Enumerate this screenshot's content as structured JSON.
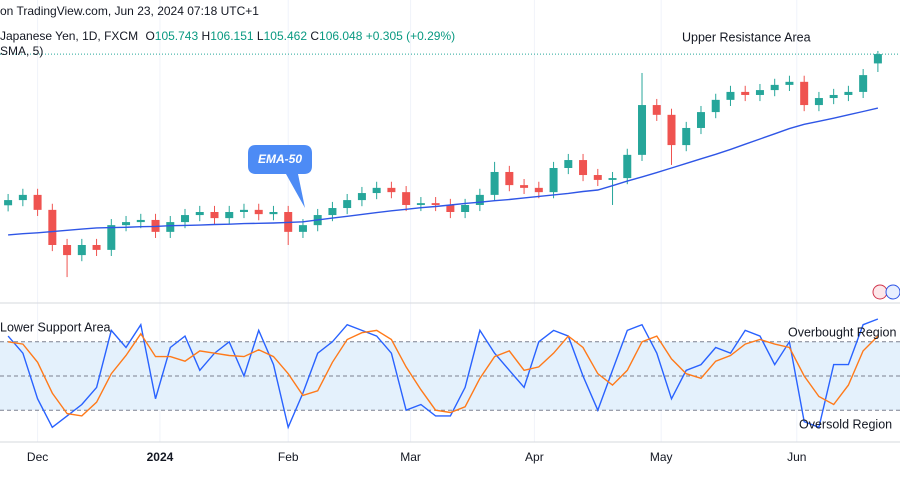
{
  "header": {
    "source": "on TradingView.com, Jun 23, 2024 07:18 UTC+1",
    "symbol": "Japanese Yen, 1D, FXCM",
    "ohlc_prefixes": [
      "O",
      "H",
      "L",
      "C"
    ],
    "change": "+0.305 (+0.29%)",
    "indicator": "SMA, 5)"
  },
  "chart_data": [
    {
      "type": "candlestick",
      "up_color": "#26a69a",
      "down_color": "#ef5350",
      "xlim": [
        -0.55,
        60.5
      ],
      "ylim": [
        98,
        107
      ],
      "open": [
        101.1,
        101.27,
        101.44,
        100.95,
        99.8,
        99.47,
        99.8,
        99.64,
        100.45,
        100.55,
        100.62,
        100.23,
        100.55,
        100.78,
        100.88,
        100.68,
        100.88,
        100.95,
        100.81,
        100.88,
        100.23,
        100.45,
        100.78,
        101.01,
        101.27,
        101.5,
        101.67,
        101.53,
        101.11,
        101.17,
        101.11,
        100.88,
        101.11,
        101.44,
        102.19,
        101.76,
        101.67,
        101.53,
        102.32,
        102.58,
        102.09,
        101.93,
        101.99,
        102.75,
        104.38,
        104.06,
        103.07,
        103.63,
        104.15,
        104.55,
        104.81,
        104.71,
        104.87,
        105.04,
        105.14,
        104.38,
        104.61,
        104.71,
        104.81,
        105.743
      ],
      "high": [
        101.47,
        101.64,
        101.64,
        101.15,
        100.0,
        100.0,
        100.0,
        100.65,
        100.75,
        100.82,
        100.82,
        100.75,
        100.98,
        101.08,
        101.08,
        101.08,
        101.15,
        101.15,
        101.08,
        101.08,
        100.65,
        100.98,
        101.21,
        101.47,
        101.7,
        101.87,
        101.87,
        101.73,
        101.37,
        101.37,
        101.31,
        101.31,
        101.64,
        102.52,
        102.39,
        101.96,
        101.87,
        102.52,
        102.78,
        102.78,
        102.29,
        102.19,
        102.95,
        105.43,
        104.58,
        104.26,
        103.83,
        104.35,
        104.75,
        105.01,
        105.01,
        105.07,
        105.24,
        105.34,
        105.34,
        104.81,
        104.91,
        105.01,
        105.56,
        106.151
      ],
      "low": [
        100.9,
        101.07,
        100.75,
        99.6,
        98.75,
        99.27,
        99.44,
        99.44,
        100.25,
        100.35,
        100.03,
        100.03,
        100.35,
        100.58,
        100.48,
        100.48,
        100.68,
        100.61,
        100.61,
        99.8,
        100.03,
        100.25,
        100.58,
        100.81,
        101.07,
        101.3,
        101.33,
        100.91,
        100.91,
        100.91,
        100.68,
        100.68,
        100.91,
        101.24,
        101.56,
        101.47,
        101.33,
        101.33,
        102.12,
        101.89,
        101.73,
        101.11,
        101.79,
        102.55,
        103.86,
        102.42,
        102.87,
        103.43,
        103.95,
        104.35,
        104.51,
        104.51,
        104.67,
        104.84,
        104.18,
        104.18,
        104.41,
        104.51,
        104.61,
        105.462
      ],
      "close": [
        101.27,
        101.44,
        100.95,
        99.8,
        99.47,
        99.8,
        99.64,
        100.45,
        100.55,
        100.62,
        100.23,
        100.55,
        100.78,
        100.88,
        100.68,
        100.88,
        100.95,
        100.81,
        100.88,
        100.23,
        100.45,
        100.78,
        101.01,
        101.27,
        101.5,
        101.67,
        101.53,
        101.11,
        101.17,
        101.11,
        100.88,
        101.11,
        101.44,
        102.19,
        101.76,
        101.67,
        101.53,
        102.32,
        102.58,
        102.09,
        101.93,
        101.99,
        102.75,
        104.38,
        104.06,
        103.07,
        103.63,
        104.15,
        104.55,
        104.81,
        104.71,
        104.87,
        105.04,
        105.14,
        104.38,
        104.61,
        104.71,
        104.81,
        105.36,
        106.048
      ],
      "series": [
        {
          "name": "EMA-50",
          "color": "#2f56e6",
          "values": [
            100.13,
            100.17,
            100.2,
            100.24,
            100.28,
            100.32,
            100.36,
            100.37,
            100.38,
            100.4,
            100.41,
            100.43,
            100.44,
            100.45,
            100.47,
            100.48,
            100.5,
            100.51,
            100.52,
            100.54,
            100.56,
            100.62,
            100.68,
            100.74,
            100.8,
            100.86,
            100.92,
            100.97,
            101.02,
            101.06,
            101.11,
            101.16,
            101.2,
            101.25,
            101.29,
            101.34,
            101.39,
            101.44,
            101.49,
            101.55,
            101.6,
            101.74,
            101.89,
            102.03,
            102.17,
            102.32,
            102.47,
            102.62,
            102.77,
            102.93,
            103.1,
            103.27,
            103.44,
            103.61,
            103.75,
            103.85,
            103.95,
            104.06,
            104.17,
            104.28
          ]
        }
      ],
      "annotations": [
        "Upper Resistance Area"
      ]
    },
    {
      "type": "line",
      "xlim": [
        -0.55,
        60.5
      ],
      "ylim": [
        0,
        100
      ],
      "hlines": [
        80,
        50,
        20
      ],
      "band": [
        20,
        80
      ],
      "band_color": "#e4f1fc",
      "series": [
        {
          "color": "#2962ff",
          "values": [
            85,
            70,
            30,
            5,
            15,
            25,
            40,
            90,
            75,
            95,
            30,
            75,
            85,
            55,
            70,
            80,
            50,
            90,
            60,
            5,
            35,
            70,
            80,
            95,
            90,
            85,
            70,
            20,
            25,
            15,
            15,
            40,
            90,
            70,
            55,
            40,
            80,
            90,
            85,
            50,
            20,
            55,
            90,
            95,
            70,
            30,
            55,
            60,
            75,
            70,
            90,
            85,
            60,
            80,
            10,
            5,
            60,
            60,
            95,
            100
          ]
        },
        {
          "color": "#ff7a1a",
          "values": [
            80,
            78,
            62,
            35,
            17,
            15,
            27,
            52,
            68,
            87,
            67,
            67,
            63,
            72,
            70,
            68,
            67,
            73,
            67,
            52,
            33,
            37,
            62,
            82,
            88,
            90,
            82,
            58,
            38,
            20,
            18,
            23,
            48,
            67,
            72,
            55,
            58,
            70,
            85,
            75,
            52,
            42,
            55,
            80,
            85,
            65,
            52,
            48,
            63,
            68,
            78,
            82,
            78,
            75,
            50,
            32,
            25,
            42,
            72,
            85
          ]
        }
      ],
      "xticks": [
        {
          "value": 2.0,
          "label": "Dec"
        },
        {
          "value": 10.3,
          "label": "2024"
        },
        {
          "value": 19.0,
          "label": "Feb"
        },
        {
          "value": 27.3,
          "label": "Mar"
        },
        {
          "value": 35.7,
          "label": "Apr"
        },
        {
          "value": 44.3,
          "label": "May"
        },
        {
          "value": 53.5,
          "label": "Jun"
        }
      ],
      "grid": true,
      "annotations": [
        "Lower Support Area",
        "Overbought Region",
        "Oversold Region"
      ]
    }
  ]
}
